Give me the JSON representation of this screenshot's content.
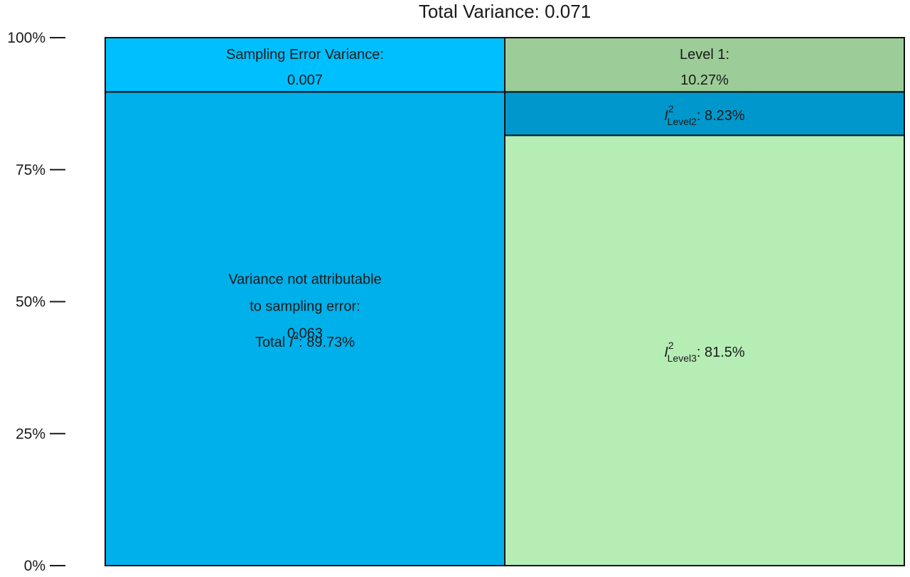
{
  "chart_data": {
    "type": "stacked-bar",
    "title": "Total Variance: 0.071",
    "ylim": [
      0,
      100
    ],
    "y_ticks": [
      {
        "value": 0,
        "label": "0%"
      },
      {
        "value": 25,
        "label": "25%"
      },
      {
        "value": 50,
        "label": "50%"
      },
      {
        "value": 75,
        "label": "75%"
      },
      {
        "value": 100,
        "label": "100%"
      }
    ],
    "columns": [
      {
        "segments": [
          {
            "name": "variance-not-attributable",
            "value": 89.73,
            "color": "#00b0ea",
            "label_lines": [
              "Variance not attributable",
              "to sampling error:",
              "0.063"
            ],
            "extra_label": {
              "prefix": "Total ",
              "symbol": "I",
              "sup": "2",
              "sub": "",
              "suffix": ": 89.73%"
            }
          },
          {
            "name": "sampling-error-variance",
            "value": 10.27,
            "color": "#00bfff",
            "label_lines": [
              "Sampling Error Variance:",
              "0.007"
            ]
          }
        ]
      },
      {
        "segments": [
          {
            "name": "i2-level3",
            "value": 81.5,
            "color": "#b5edb5",
            "label": {
              "prefix": "",
              "symbol": "I",
              "sup": "2",
              "sub": "Level3",
              "suffix": ": 81.5%"
            }
          },
          {
            "name": "i2-level2",
            "value": 8.23,
            "color": "#0098cc",
            "label": {
              "prefix": "",
              "symbol": "I",
              "sup": "2",
              "sub": "Level2",
              "suffix": ": 8.23%"
            }
          },
          {
            "name": "level1",
            "value": 10.27,
            "color": "#9ccc98",
            "label_lines": [
              "Level 1:",
              "10.27%"
            ]
          }
        ]
      }
    ]
  }
}
